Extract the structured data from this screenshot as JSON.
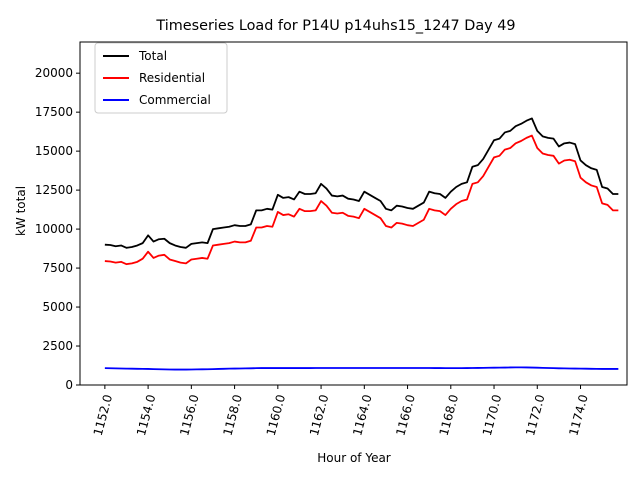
{
  "chart_data": {
    "type": "line",
    "title": "Timeseries Load for P14U p14uhs15_1247  Day 49",
    "xlabel": "Hour of Year",
    "ylabel": "kW total",
    "xlim": [
      1150.85,
      1176.15
    ],
    "ylim": [
      0,
      22000
    ],
    "xticks": [
      1152,
      1154,
      1156,
      1158,
      1160,
      1162,
      1164,
      1166,
      1168,
      1170,
      1172,
      1174
    ],
    "xtick_labels": [
      "1152.0",
      "1154.0",
      "1156.0",
      "1158.0",
      "1160.0",
      "1162.0",
      "1164.0",
      "1166.0",
      "1168.0",
      "1170.0",
      "1172.0",
      "1174.0"
    ],
    "yticks": [
      0,
      2500,
      5000,
      7500,
      10000,
      12500,
      15000,
      17500,
      20000
    ],
    "ytick_labels": [
      "0",
      "2500",
      "5000",
      "7500",
      "10000",
      "12500",
      "15000",
      "17500",
      "20000"
    ],
    "legend_position": "top-left",
    "x": [
      1152.0,
      1152.25,
      1152.5,
      1152.75,
      1153.0,
      1153.25,
      1153.5,
      1153.75,
      1154.0,
      1154.25,
      1154.5,
      1154.75,
      1155.0,
      1155.25,
      1155.5,
      1155.75,
      1156.0,
      1156.25,
      1156.5,
      1156.75,
      1157.0,
      1157.25,
      1157.5,
      1157.75,
      1158.0,
      1158.25,
      1158.5,
      1158.75,
      1159.0,
      1159.25,
      1159.5,
      1159.75,
      1160.0,
      1160.25,
      1160.5,
      1160.75,
      1161.0,
      1161.25,
      1161.5,
      1161.75,
      1162.0,
      1162.25,
      1162.5,
      1162.75,
      1163.0,
      1163.25,
      1163.5,
      1163.75,
      1164.0,
      1164.25,
      1164.5,
      1164.75,
      1165.0,
      1165.25,
      1165.5,
      1165.75,
      1166.0,
      1166.25,
      1166.5,
      1166.75,
      1167.0,
      1167.25,
      1167.5,
      1167.75,
      1168.0,
      1168.25,
      1168.5,
      1168.75,
      1169.0,
      1169.25,
      1169.5,
      1169.75,
      1170.0,
      1170.25,
      1170.5,
      1170.75,
      1171.0,
      1171.25,
      1171.5,
      1171.75,
      1172.0,
      1172.25,
      1172.5,
      1172.75,
      1173.0,
      1173.25,
      1173.5,
      1173.75,
      1174.0,
      1174.25,
      1174.5,
      1174.75,
      1175.0,
      1175.25,
      1175.5,
      1175.75
    ],
    "series": [
      {
        "name": "Total",
        "color": "#000000",
        "values": [
          9000,
          8980,
          8900,
          8950,
          8800,
          8850,
          8950,
          9100,
          9600,
          9200,
          9350,
          9380,
          9100,
          8950,
          8850,
          8800,
          9050,
          9100,
          9150,
          9100,
          10000,
          10050,
          10100,
          10150,
          10250,
          10200,
          10200,
          10300,
          11200,
          11200,
          11300,
          11250,
          12200,
          12000,
          12050,
          11900,
          12400,
          12250,
          12250,
          12300,
          12900,
          12600,
          12150,
          12100,
          12150,
          11950,
          11900,
          11800,
          12400,
          12200,
          12000,
          11800,
          11300,
          11200,
          11500,
          11450,
          11350,
          11300,
          11500,
          11700,
          12400,
          12300,
          12250,
          12000,
          12400,
          12700,
          12900,
          13000,
          14000,
          14100,
          14500,
          15100,
          15700,
          15800,
          16200,
          16300,
          16600,
          16750,
          16950,
          17100,
          16300,
          15950,
          15850,
          15800,
          15300,
          15500,
          15550,
          15450,
          14400,
          14100,
          13900,
          13800,
          12700,
          12600,
          12250,
          12250
        ]
      },
      {
        "name": "Residential",
        "color": "#ff0000",
        "values": [
          7950,
          7920,
          7850,
          7900,
          7750,
          7800,
          7900,
          8100,
          8550,
          8150,
          8300,
          8350,
          8050,
          7950,
          7850,
          7800,
          8050,
          8100,
          8150,
          8100,
          8950,
          9000,
          9050,
          9100,
          9200,
          9150,
          9150,
          9250,
          10100,
          10100,
          10200,
          10150,
          11100,
          10900,
          10950,
          10800,
          11300,
          11150,
          11150,
          11200,
          11800,
          11500,
          11050,
          11000,
          11050,
          10850,
          10800,
          10700,
          11300,
          11100,
          10900,
          10700,
          10200,
          10100,
          10400,
          10350,
          10250,
          10200,
          10400,
          10600,
          11300,
          11200,
          11150,
          10900,
          11300,
          11600,
          11800,
          11900,
          12900,
          13000,
          13400,
          14000,
          14600,
          14700,
          15100,
          15200,
          15500,
          15650,
          15850,
          16000,
          15200,
          14850,
          14750,
          14700,
          14200,
          14400,
          14450,
          14350,
          13300,
          13000,
          12800,
          12700,
          11650,
          11550,
          11200,
          11200
        ]
      },
      {
        "name": "Commercial",
        "color": "#0000ff",
        "values": [
          1080,
          1075,
          1065,
          1060,
          1050,
          1045,
          1040,
          1035,
          1030,
          1020,
          1010,
          1000,
          995,
          990,
          990,
          990,
          995,
          1000,
          1005,
          1010,
          1020,
          1030,
          1040,
          1050,
          1055,
          1060,
          1065,
          1070,
          1080,
          1085,
          1085,
          1085,
          1085,
          1085,
          1085,
          1085,
          1085,
          1085,
          1085,
          1090,
          1090,
          1090,
          1090,
          1090,
          1090,
          1090,
          1090,
          1090,
          1090,
          1090,
          1090,
          1090,
          1090,
          1090,
          1090,
          1090,
          1090,
          1090,
          1090,
          1090,
          1090,
          1085,
          1085,
          1080,
          1080,
          1080,
          1080,
          1085,
          1090,
          1095,
          1100,
          1105,
          1110,
          1115,
          1120,
          1125,
          1130,
          1130,
          1125,
          1120,
          1110,
          1100,
          1090,
          1080,
          1070,
          1065,
          1060,
          1055,
          1050,
          1045,
          1040,
          1035,
          1030,
          1030,
          1030,
          1030
        ]
      }
    ]
  }
}
